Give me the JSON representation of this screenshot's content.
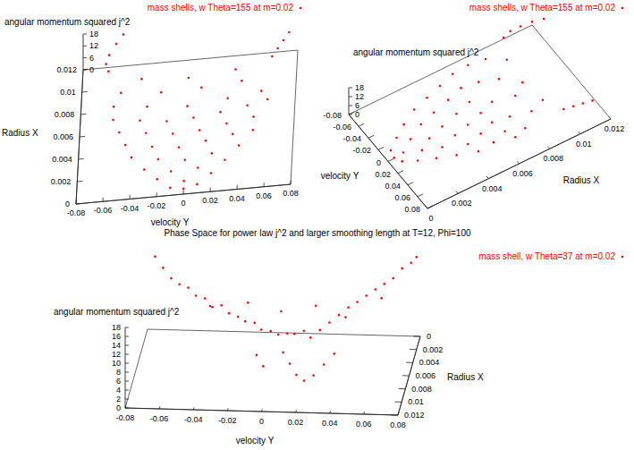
{
  "chart_data": [
    {
      "type": "scatter3d",
      "xlabel": "velocity Y",
      "ylabel": "Radius X",
      "zlabel": "angular momentum squared j^2",
      "xlim": [
        -0.08,
        0.08
      ],
      "xticks": [
        -0.08,
        -0.06,
        -0.04,
        -0.02,
        0,
        0.02,
        0.04,
        0.06,
        0.08
      ],
      "ylim": [
        0,
        0.012
      ],
      "yticks": [
        0,
        0.002,
        0.004,
        0.006,
        0.008,
        0.01,
        0.012
      ],
      "zlim": [
        0,
        18
      ],
      "zticks": [
        0,
        6,
        12,
        18
      ],
      "legend": "top-right",
      "series": [
        {
          "name": "mass shells, w Theta=155 at m=0.02",
          "color": "#ff0000",
          "marker": "dot",
          "x": [
            -0.01,
            0,
            0.01,
            -0.02,
            0,
            0.02,
            -0.03,
            -0.01,
            0.01,
            0.03,
            -0.04,
            -0.02,
            0,
            0.02,
            0.04,
            -0.045,
            -0.025,
            -0.005,
            0.015,
            0.035,
            0.05,
            -0.05,
            -0.03,
            -0.01,
            0.01,
            0.03,
            0.05,
            -0.055,
            -0.035,
            -0.015,
            0.005,
            0.025,
            0.045,
            0.06,
            -0.055,
            -0.03,
            0,
            0.03,
            0.055,
            -0.05,
            -0.02,
            0.01,
            0.04,
            -0.035,
            0,
            0.035,
            -0.06,
            -0.062,
            -0.06,
            -0.055,
            -0.05,
            0.062,
            0.066,
            0.07,
            0.074
          ],
          "y": [
            0.0005,
            0.0004,
            0.0006,
            0.0012,
            0.001,
            0.0013,
            0.002,
            0.0018,
            0.0019,
            0.0022,
            0.003,
            0.0028,
            0.0027,
            0.0029,
            0.0032,
            0.004,
            0.0038,
            0.0037,
            0.0039,
            0.0041,
            0.0043,
            0.005,
            0.0049,
            0.0048,
            0.0049,
            0.0051,
            0.0053,
            0.006,
            0.0059,
            0.0058,
            0.0059,
            0.006,
            0.0062,
            0.0064,
            0.007,
            0.0069,
            0.0068,
            0.007,
            0.0072,
            0.008,
            0.0079,
            0.008,
            0.0081,
            0.0089,
            0.0088,
            0.009,
            0.0095,
            0.01,
            0.0106,
            0.0112,
            0.0118,
            0.0095,
            0.01,
            0.0105,
            0.011
          ],
          "z": [
            1,
            0.5,
            1,
            2,
            1,
            2,
            3,
            2,
            2,
            3,
            4,
            3,
            2,
            3,
            4,
            5,
            4,
            3,
            4,
            5,
            5,
            6,
            5,
            4,
            4,
            5,
            6,
            7,
            6,
            5,
            5,
            6,
            7,
            8,
            8,
            7,
            6,
            7,
            8,
            9,
            8,
            8,
            9,
            10,
            9,
            10,
            12,
            13,
            14,
            16,
            17,
            12,
            13,
            14,
            15
          ]
        }
      ]
    },
    {
      "type": "scatter3d",
      "xlabel": "velocity Y",
      "ylabel": "Radius X",
      "zlabel": "angular momentum squared j^2",
      "xlim": [
        -0.08,
        0.08
      ],
      "xticks": [
        -0.08,
        -0.06,
        -0.04,
        -0.02,
        0,
        0.02,
        0.04,
        0.06,
        0.08
      ],
      "ylim": [
        0,
        0.012
      ],
      "yticks": [
        0,
        0.002,
        0.004,
        0.006,
        0.008,
        0.01,
        0.012
      ],
      "zlim": [
        0,
        18
      ],
      "zticks": [
        0,
        6,
        12,
        18
      ],
      "legend": "top-right",
      "series": [
        {
          "name": "mass shells, w Theta=155 at m=0.02",
          "color": "#ff0000",
          "marker": "dot",
          "x": [
            -0.01,
            0,
            0.01,
            -0.02,
            0,
            0.02,
            -0.03,
            -0.01,
            0.01,
            0.03,
            -0.04,
            -0.02,
            0,
            0.02,
            0.04,
            -0.045,
            -0.025,
            -0.005,
            0.015,
            0.035,
            0.05,
            -0.05,
            -0.03,
            -0.01,
            0.01,
            0.03,
            0.05,
            -0.055,
            -0.035,
            -0.015,
            0.005,
            0.025,
            0.045,
            0.06,
            -0.055,
            -0.03,
            0,
            0.03,
            0.055,
            -0.05,
            -0.02,
            0.01,
            0.04,
            -0.035,
            0,
            0.035,
            -0.06,
            -0.062,
            -0.06,
            -0.055,
            -0.05,
            0.062,
            0.066,
            0.07,
            0.074
          ],
          "y": [
            0.0005,
            0.0004,
            0.0006,
            0.0012,
            0.001,
            0.0013,
            0.002,
            0.0018,
            0.0019,
            0.0022,
            0.003,
            0.0028,
            0.0027,
            0.0029,
            0.0032,
            0.004,
            0.0038,
            0.0037,
            0.0039,
            0.0041,
            0.0043,
            0.005,
            0.0049,
            0.0048,
            0.0049,
            0.0051,
            0.0053,
            0.006,
            0.0059,
            0.0058,
            0.0059,
            0.006,
            0.0062,
            0.0064,
            0.007,
            0.0069,
            0.0068,
            0.007,
            0.0072,
            0.008,
            0.0079,
            0.008,
            0.0081,
            0.0089,
            0.0088,
            0.009,
            0.0095,
            0.01,
            0.0106,
            0.0112,
            0.0118,
            0.0095,
            0.01,
            0.0105,
            0.011
          ],
          "z": [
            1,
            0.5,
            1,
            2,
            1,
            2,
            3,
            2,
            2,
            3,
            4,
            3,
            2,
            3,
            4,
            5,
            4,
            3,
            4,
            5,
            5,
            6,
            5,
            4,
            4,
            5,
            6,
            7,
            6,
            5,
            5,
            6,
            7,
            8,
            8,
            7,
            6,
            7,
            8,
            9,
            8,
            8,
            9,
            10,
            9,
            10,
            12,
            13,
            14,
            16,
            17,
            12,
            13,
            14,
            15
          ]
        }
      ]
    },
    {
      "type": "scatter3d",
      "title": "Phase Space for power law j^2 and larger smoothing length at T=12, Phi=100",
      "xlabel": "velocity Y",
      "ylabel": "Radius X",
      "zlabel": "angular momentum squared j^2",
      "xlim": [
        -0.08,
        0.08
      ],
      "xticks": [
        -0.08,
        -0.06,
        -0.04,
        -0.02,
        0,
        0.02,
        0.04,
        0.06,
        0.08
      ],
      "ylim": [
        0,
        0.012
      ],
      "yticks": [
        0,
        0.002,
        0.004,
        0.006,
        0.008,
        0.01,
        0.012
      ],
      "zlim": [
        0,
        18
      ],
      "zticks": [
        0,
        2,
        4,
        6,
        8,
        10,
        12,
        14,
        16,
        18
      ],
      "legend": "top-right",
      "series": [
        {
          "name": "mass shell, w Theta=37 at m=0.02",
          "color": "#ff0000",
          "marker": "dot",
          "x": [
            -0.075,
            -0.07,
            -0.065,
            -0.06,
            -0.055,
            -0.05,
            -0.045,
            -0.04,
            -0.035,
            -0.03,
            -0.025,
            -0.02,
            -0.015,
            -0.01,
            -0.005,
            0,
            0.005,
            0.01,
            0.015,
            0.02,
            0.025,
            0.03,
            0.035,
            0.04,
            0.045,
            0.05,
            0.055,
            0.06,
            0.065,
            0.07,
            0.075,
            0.078,
            -0.04,
            -0.02,
            0,
            0.02,
            0.04,
            0.06,
            0.005,
            0.01,
            0.015,
            0.02,
            0.025,
            0.03,
            0.035,
            -0.01,
            -0.005
          ],
          "y": [
            0.0005,
            0.0008,
            0.001,
            0.0012,
            0.001,
            0.0015,
            0.0012,
            0.0018,
            0.0015,
            0.002,
            0.0018,
            0.0025,
            0.002,
            0.003,
            0.0025,
            0.003,
            0.0028,
            0.0035,
            0.003,
            0.004,
            0.0035,
            0.003,
            0.0025,
            0.002,
            0.0018,
            0.0015,
            0.0012,
            0.001,
            0.0008,
            0.0006,
            0.0004,
            0.0002,
            0.003,
            0.001,
            0.0015,
            0.0012,
            0.0035,
            0.0025,
            0.005,
            0.006,
            0.007,
            0.0075,
            0.007,
            0.006,
            0.005,
            0.0055,
            0.0065
          ],
          "z": [
            17,
            15,
            13,
            12,
            11,
            10,
            9,
            8,
            8,
            7,
            6,
            6,
            5,
            5,
            4,
            4,
            4,
            5,
            5,
            5,
            6,
            7,
            8,
            9,
            10,
            11,
            12,
            13,
            14,
            16,
            17,
            18,
            10,
            8,
            7,
            8,
            9,
            12,
            3,
            2,
            1,
            0.5,
            1,
            2,
            3,
            3,
            2
          ]
        }
      ]
    }
  ]
}
